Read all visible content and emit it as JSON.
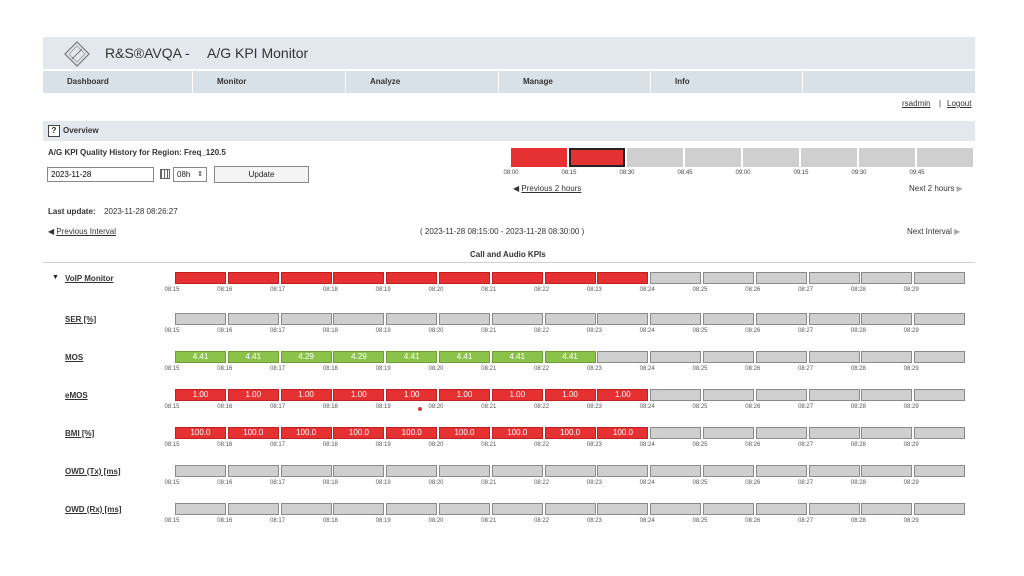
{
  "header": {
    "app_name": "R&S®AVQA",
    "separator": "-",
    "title": "A/G KPI Monitor"
  },
  "nav": [
    {
      "label": "Dashboard"
    },
    {
      "label": "Monitor"
    },
    {
      "label": "Analyze"
    },
    {
      "label": "Manage"
    },
    {
      "label": "Info"
    },
    {
      "label": ""
    }
  ],
  "user": {
    "name": "rsadmin",
    "separator": "|",
    "logout": "Logout"
  },
  "overview": {
    "help": "?",
    "label": "Overview"
  },
  "history": {
    "title": "A/G KPI Quality History for Region: Freq_120.5",
    "date_value": "2023-11-28",
    "hour_value": "08h",
    "update_label": "Update",
    "timeline_ticks": [
      "08:00",
      "08:15",
      "08:30",
      "08:45",
      "09:00",
      "09:15",
      "09:30",
      "09:45"
    ],
    "timeline_status": [
      "red",
      "red-selected",
      "gray",
      "gray",
      "gray",
      "gray",
      "gray",
      "gray"
    ],
    "prev_label": "Previous 2 hours",
    "next_label": "Next 2 hours",
    "colors": {
      "red": "#e53131",
      "gray": "#cfcfcf",
      "selected_border": "#222222"
    }
  },
  "last_update": {
    "label": "Last update:",
    "value": "2023-11-28 08:26:27"
  },
  "interval": {
    "prev_label": "Previous Interval",
    "range": "( 2023-11-28 08:15:00 - 2023-11-28 08:30:00 )",
    "next_label": "Next Interval"
  },
  "section_title": "Call and Audio KPIs",
  "ticks": [
    "08:15",
    "08:16",
    "08:17",
    "08:18",
    "08:19",
    "08:20",
    "08:21",
    "08:22",
    "08:23",
    "08:24",
    "08:25",
    "08:26",
    "08:27",
    "08:28",
    "08:29"
  ],
  "kpis": [
    {
      "label": "VoIP Monitor",
      "status": [
        "red",
        "red",
        "red",
        "red",
        "red",
        "red",
        "red",
        "red",
        "red",
        "gray",
        "gray",
        "gray",
        "gray",
        "gray",
        "gray"
      ],
      "values": [
        "",
        "",
        "",
        "",
        "",
        "",
        "",
        "",
        "",
        "",
        "",
        "",
        "",
        "",
        ""
      ]
    },
    {
      "label": "SER [%]",
      "status": [
        "gray",
        "gray",
        "gray",
        "gray",
        "gray",
        "gray",
        "gray",
        "gray",
        "gray",
        "gray",
        "gray",
        "gray",
        "gray",
        "gray",
        "gray"
      ],
      "values": [
        "",
        "",
        "",
        "",
        "",
        "",
        "",
        "",
        "",
        "",
        "",
        "",
        "",
        "",
        ""
      ]
    },
    {
      "label": "MOS",
      "status": [
        "green",
        "green",
        "green",
        "green",
        "green",
        "green",
        "green",
        "green",
        "gray",
        "gray",
        "gray",
        "gray",
        "gray",
        "gray",
        "gray"
      ],
      "values": [
        "4.41",
        "4.41",
        "4.29",
        "4.29",
        "4.41",
        "4.41",
        "4.41",
        "4.41",
        "",
        "",
        "",
        "",
        "",
        "",
        ""
      ]
    },
    {
      "label": "eMOS",
      "status": [
        "red",
        "red",
        "red",
        "red",
        "red",
        "red",
        "red",
        "red",
        "red",
        "gray",
        "gray",
        "gray",
        "gray",
        "gray",
        "gray"
      ],
      "values": [
        "1.00",
        "1.00",
        "1.00",
        "1.00",
        "1.00",
        "1.00",
        "1.00",
        "1.00",
        "1.00",
        "",
        "",
        "",
        "",
        "",
        ""
      ]
    },
    {
      "label": "BMI [%]",
      "status": [
        "red",
        "red",
        "red",
        "red",
        "red",
        "red",
        "red",
        "red",
        "red",
        "gray",
        "gray",
        "gray",
        "gray",
        "gray",
        "gray"
      ],
      "values": [
        "100.0",
        "100.0",
        "100.0",
        "100.0",
        "100.0",
        "100.0",
        "100.0",
        "100.0",
        "100.0",
        "",
        "",
        "",
        "",
        "",
        ""
      ]
    },
    {
      "label": "OWD (Tx) [ms]",
      "status": [
        "gray",
        "gray",
        "gray",
        "gray",
        "gray",
        "gray",
        "gray",
        "gray",
        "gray",
        "gray",
        "gray",
        "gray",
        "gray",
        "gray",
        "gray"
      ],
      "values": [
        "",
        "",
        "",
        "",
        "",
        "",
        "",
        "",
        "",
        "",
        "",
        "",
        "",
        "",
        ""
      ]
    },
    {
      "label": "OWD (Rx) [ms]",
      "status": [
        "gray",
        "gray",
        "gray",
        "gray",
        "gray",
        "gray",
        "gray",
        "gray",
        "gray",
        "gray",
        "gray",
        "gray",
        "gray",
        "gray",
        "gray"
      ],
      "values": [
        "",
        "",
        "",
        "",
        "",
        "",
        "",
        "",
        "",
        "",
        "",
        "",
        "",
        "",
        ""
      ]
    }
  ]
}
